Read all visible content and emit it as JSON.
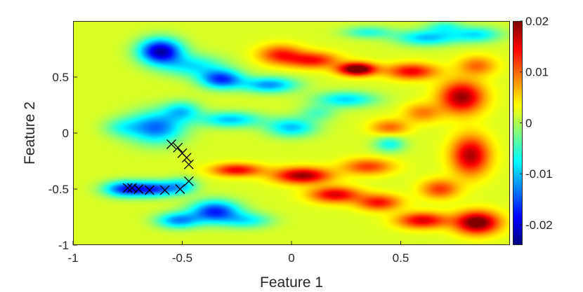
{
  "chart_data": {
    "type": "heatmap",
    "colormap": "jet",
    "title": "",
    "xlabel": "Feature 1",
    "ylabel": "Feature 2",
    "xlim": [
      -1,
      1
    ],
    "ylim": [
      -1,
      1
    ],
    "xticks": [
      -1,
      -0.5,
      0,
      0.5
    ],
    "xtick_labels": [
      "-1",
      "-0.5",
      "0",
      "0.5"
    ],
    "yticks": [
      -1,
      -0.5,
      0,
      0.5
    ],
    "ytick_labels": [
      "-1",
      "-0.5",
      "0",
      "0.5"
    ],
    "colorbar": {
      "range": [
        -0.024,
        0.02
      ],
      "ticks": [
        -0.02,
        -0.01,
        0,
        0.01,
        0.02
      ],
      "tick_labels": [
        "-0.02",
        "-0.01",
        "0",
        "0.01",
        "0.02"
      ],
      "location": "right"
    },
    "background_level": 0.002,
    "blobs": [
      {
        "x": -0.6,
        "y": 0.73,
        "sx": 0.07,
        "sy": 0.08,
        "a": -0.024
      },
      {
        "x": -0.45,
        "y": 0.6,
        "sx": 0.1,
        "sy": 0.07,
        "a": -0.01
      },
      {
        "x": -0.32,
        "y": 0.48,
        "sx": 0.07,
        "sy": 0.06,
        "a": -0.018
      },
      {
        "x": -0.1,
        "y": 0.43,
        "sx": 0.09,
        "sy": 0.05,
        "a": -0.014
      },
      {
        "x": 0.25,
        "y": 0.3,
        "sx": 0.1,
        "sy": 0.05,
        "a": -0.011
      },
      {
        "x": -0.62,
        "y": 0.05,
        "sx": 0.09,
        "sy": 0.1,
        "a": -0.016
      },
      {
        "x": -0.5,
        "y": 0.2,
        "sx": 0.06,
        "sy": 0.06,
        "a": -0.01
      },
      {
        "x": -0.78,
        "y": 0.05,
        "sx": 0.06,
        "sy": 0.06,
        "a": -0.006
      },
      {
        "x": -0.28,
        "y": 0.12,
        "sx": 0.1,
        "sy": 0.05,
        "a": -0.012
      },
      {
        "x": 0.0,
        "y": 0.05,
        "sx": 0.08,
        "sy": 0.06,
        "a": -0.012
      },
      {
        "x": 0.12,
        "y": 0.18,
        "sx": 0.06,
        "sy": 0.05,
        "a": -0.006
      },
      {
        "x": 0.45,
        "y": -0.1,
        "sx": 0.05,
        "sy": 0.05,
        "a": -0.009
      },
      {
        "x": -0.76,
        "y": -0.5,
        "sx": 0.07,
        "sy": 0.05,
        "a": -0.018
      },
      {
        "x": -0.62,
        "y": -0.5,
        "sx": 0.07,
        "sy": 0.05,
        "a": -0.016
      },
      {
        "x": -0.5,
        "y": -0.47,
        "sx": 0.05,
        "sy": 0.05,
        "a": -0.01
      },
      {
        "x": -0.52,
        "y": -0.78,
        "sx": 0.07,
        "sy": 0.05,
        "a": -0.014
      },
      {
        "x": -0.35,
        "y": -0.7,
        "sx": 0.08,
        "sy": 0.07,
        "a": -0.019
      },
      {
        "x": -0.2,
        "y": -0.78,
        "sx": 0.08,
        "sy": 0.05,
        "a": -0.009
      },
      {
        "x": 0.35,
        "y": 0.9,
        "sx": 0.08,
        "sy": 0.04,
        "a": -0.008
      },
      {
        "x": 0.62,
        "y": 0.85,
        "sx": 0.1,
        "sy": 0.05,
        "a": -0.012
      },
      {
        "x": 0.85,
        "y": 0.88,
        "sx": 0.08,
        "sy": 0.05,
        "a": -0.01
      },
      {
        "x": 0.7,
        "y": 0.95,
        "sx": 0.06,
        "sy": 0.04,
        "a": -0.007
      },
      {
        "x": -0.05,
        "y": 0.7,
        "sx": 0.07,
        "sy": 0.06,
        "a": 0.011
      },
      {
        "x": 0.1,
        "y": 0.65,
        "sx": 0.08,
        "sy": 0.05,
        "a": 0.012
      },
      {
        "x": 0.3,
        "y": 0.57,
        "sx": 0.06,
        "sy": 0.04,
        "a": 0.022
      },
      {
        "x": 0.55,
        "y": 0.55,
        "sx": 0.08,
        "sy": 0.05,
        "a": 0.013
      },
      {
        "x": 0.78,
        "y": 0.32,
        "sx": 0.07,
        "sy": 0.1,
        "a": 0.017
      },
      {
        "x": 0.82,
        "y": -0.2,
        "sx": 0.06,
        "sy": 0.12,
        "a": 0.016
      },
      {
        "x": 0.85,
        "y": -0.8,
        "sx": 0.07,
        "sy": 0.07,
        "a": 0.02
      },
      {
        "x": 0.6,
        "y": -0.78,
        "sx": 0.08,
        "sy": 0.05,
        "a": 0.014
      },
      {
        "x": 0.4,
        "y": -0.62,
        "sx": 0.07,
        "sy": 0.05,
        "a": 0.012
      },
      {
        "x": 0.2,
        "y": -0.55,
        "sx": 0.08,
        "sy": 0.05,
        "a": 0.014
      },
      {
        "x": -0.25,
        "y": -0.33,
        "sx": 0.08,
        "sy": 0.04,
        "a": 0.013
      },
      {
        "x": 0.05,
        "y": -0.38,
        "sx": 0.09,
        "sy": 0.05,
        "a": 0.017
      },
      {
        "x": 0.35,
        "y": -0.3,
        "sx": 0.08,
        "sy": 0.05,
        "a": 0.01
      },
      {
        "x": 0.45,
        "y": 0.05,
        "sx": 0.06,
        "sy": 0.05,
        "a": 0.008
      },
      {
        "x": 0.6,
        "y": 0.18,
        "sx": 0.06,
        "sy": 0.06,
        "a": 0.007
      },
      {
        "x": 0.68,
        "y": -0.5,
        "sx": 0.06,
        "sy": 0.06,
        "a": 0.01
      },
      {
        "x": 0.85,
        "y": 0.6,
        "sx": 0.06,
        "sy": 0.06,
        "a": 0.008
      }
    ],
    "markers": {
      "symbol": "x",
      "color": "#000000",
      "points": [
        [
          -0.55,
          -0.1
        ],
        [
          -0.52,
          -0.13
        ],
        [
          -0.5,
          -0.18
        ],
        [
          -0.48,
          -0.22
        ],
        [
          -0.47,
          -0.28
        ],
        [
          -0.47,
          -0.43
        ],
        [
          -0.51,
          -0.5
        ],
        [
          -0.58,
          -0.51
        ],
        [
          -0.65,
          -0.51
        ],
        [
          -0.7,
          -0.5
        ],
        [
          -0.73,
          -0.49
        ],
        [
          -0.75,
          -0.49
        ]
      ]
    }
  }
}
